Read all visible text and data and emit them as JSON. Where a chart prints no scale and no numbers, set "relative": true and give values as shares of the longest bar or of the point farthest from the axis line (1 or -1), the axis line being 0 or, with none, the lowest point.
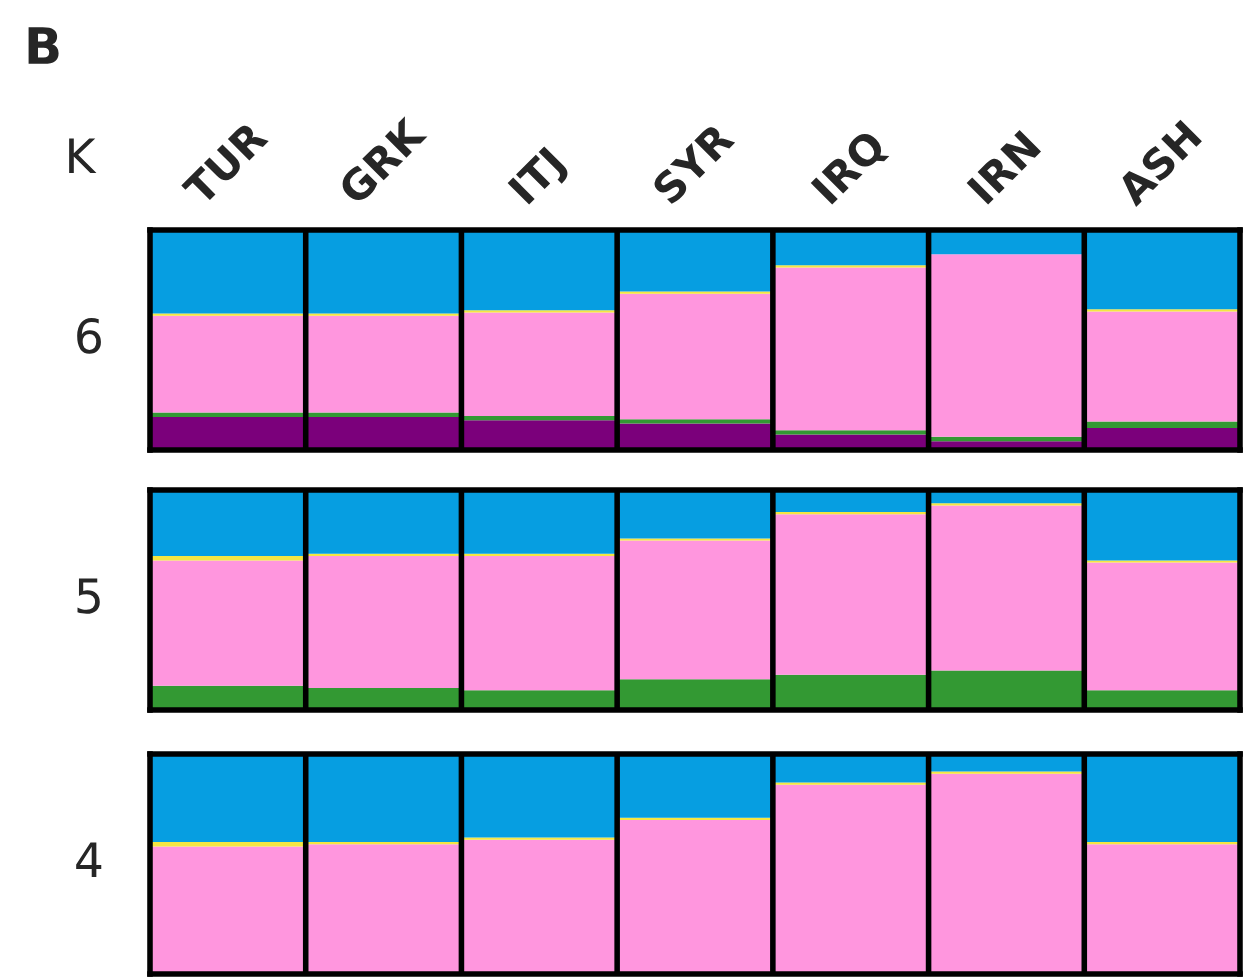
{
  "chart_data": [
    {
      "type": "bar",
      "title": "B",
      "ylabel": "6",
      "annotations": [
        "K"
      ],
      "relative": true,
      "stacked": true,
      "tick_labels": "x",
      "legend": false,
      "grid": false,
      "categories": [
        "TUR",
        "GRK",
        "ITJ",
        "SYR",
        "IRQ",
        "IRN",
        "ASH"
      ],
      "series": [
        {
          "color": "#7b007b",
          "values": [
            0.15,
            0.15,
            0.135,
            0.12,
            0.07,
            0.04,
            0.1
          ]
        },
        {
          "color": "#339933",
          "values": [
            0.02,
            0.02,
            0.02,
            0.02,
            0.02,
            0.02,
            0.03
          ]
        },
        {
          "color": "#ff96de",
          "values": [
            0.44,
            0.44,
            0.47,
            0.57,
            0.74,
            0.83,
            0.5
          ]
        },
        {
          "color": "#f5e642",
          "values": [
            0.01,
            0.01,
            0.01,
            0.01,
            0.01,
            0.0,
            0.01
          ]
        },
        {
          "color": "#069ee1",
          "values": [
            0.38,
            0.38,
            0.365,
            0.28,
            0.16,
            0.11,
            0.36
          ]
        }
      ]
    },
    {
      "type": "bar",
      "ylabel": "5",
      "relative": true,
      "stacked": true,
      "tick_labels": false,
      "legend": false,
      "grid": false,
      "categories": [
        null,
        null,
        null,
        null,
        null,
        null,
        null
      ],
      "series": [
        {
          "color": "#339933",
          "values": [
            0.11,
            0.1,
            0.09,
            0.14,
            0.16,
            0.18,
            0.09
          ]
        },
        {
          "color": "#ff96de",
          "values": [
            0.57,
            0.6,
            0.61,
            0.63,
            0.73,
            0.75,
            0.58
          ]
        },
        {
          "color": "#f5e642",
          "values": [
            0.02,
            0.01,
            0.01,
            0.01,
            0.01,
            0.01,
            0.01
          ]
        },
        {
          "color": "#069ee1",
          "values": [
            0.3,
            0.29,
            0.29,
            0.22,
            0.1,
            0.06,
            0.32
          ]
        }
      ]
    },
    {
      "type": "bar",
      "ylabel": "4",
      "relative": true,
      "stacked": true,
      "tick_labels": false,
      "legend": false,
      "grid": false,
      "categories": [
        null,
        null,
        null,
        null,
        null,
        null,
        null
      ],
      "series": [
        {
          "color": "#ff96de",
          "values": [
            0.58,
            0.59,
            0.61,
            0.7,
            0.86,
            0.91,
            0.59
          ]
        },
        {
          "color": "#f5e642",
          "values": [
            0.02,
            0.01,
            0.01,
            0.01,
            0.01,
            0.01,
            0.01
          ]
        },
        {
          "color": "#069ee1",
          "values": [
            0.4,
            0.4,
            0.38,
            0.29,
            0.13,
            0.08,
            0.4
          ]
        }
      ]
    }
  ]
}
